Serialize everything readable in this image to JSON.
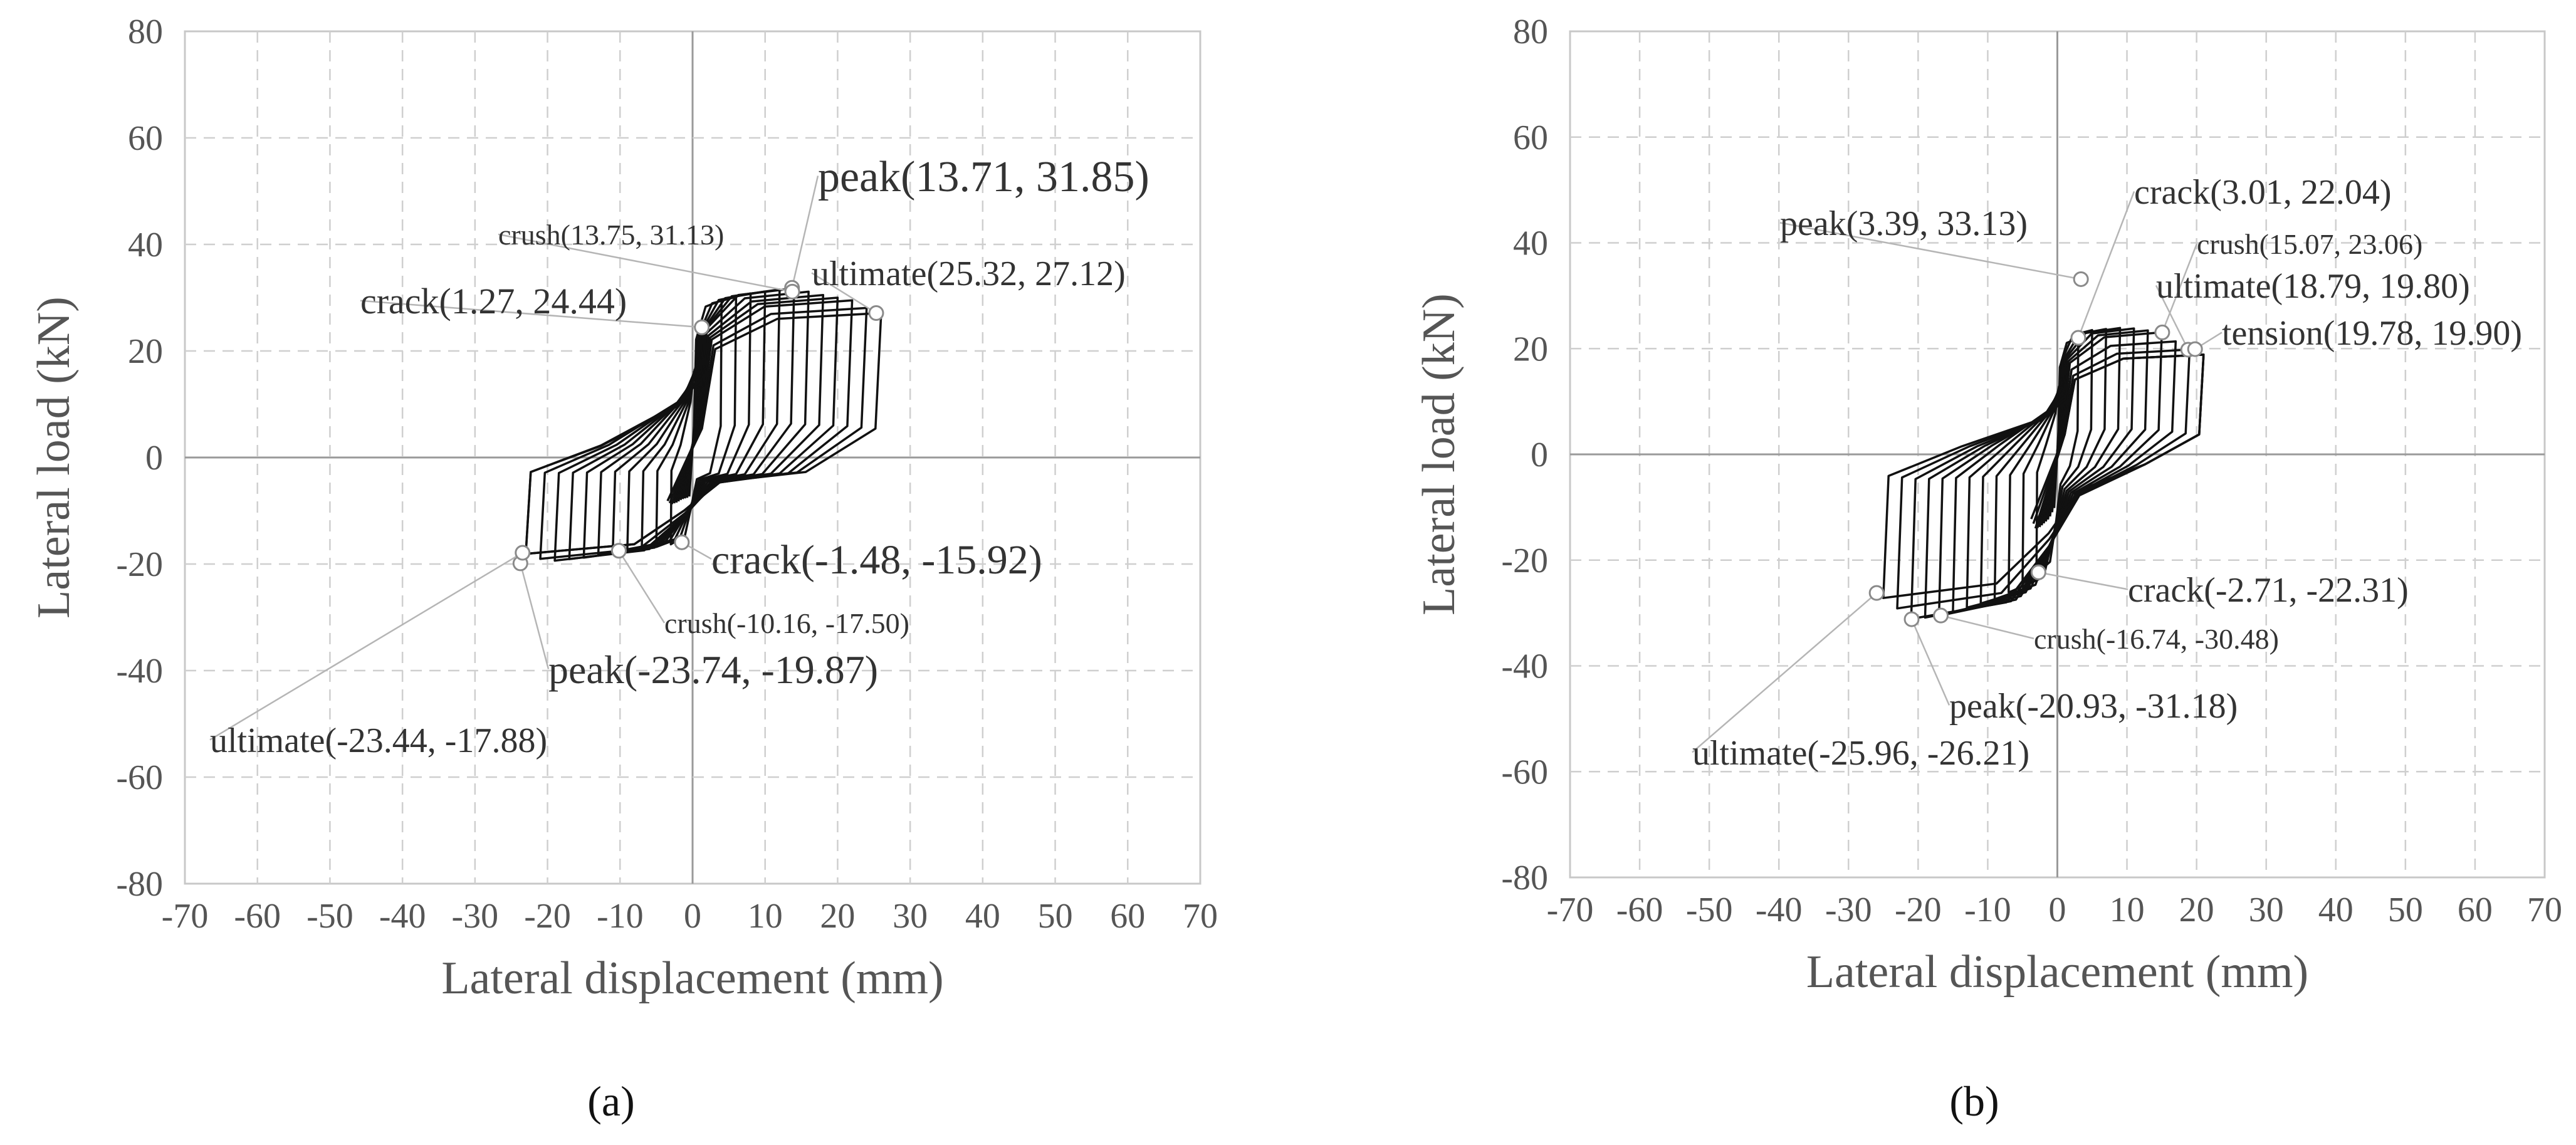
{
  "chart_data": [
    {
      "type": "line",
      "panel_label": "(a)",
      "xlabel": "Lateral displacement (mm)",
      "ylabel": "Lateral load (kN)",
      "xlim": [
        -70,
        70
      ],
      "ylim": [
        -80,
        80
      ],
      "xticks": [
        -70,
        -60,
        -50,
        -40,
        -30,
        -20,
        -10,
        0,
        10,
        20,
        30,
        40,
        50,
        60,
        70
      ],
      "yticks": [
        80,
        60,
        40,
        20,
        0,
        -20,
        -40,
        -60,
        -80
      ],
      "grid": true,
      "hysteresis_envelope_pos": [
        [
          0,
          0
        ],
        [
          1.27,
          24.44
        ],
        [
          2,
          27
        ],
        [
          4,
          29.5
        ],
        [
          8,
          30.8
        ],
        [
          13.71,
          31.85
        ],
        [
          18,
          30.5
        ],
        [
          22,
          29.5
        ],
        [
          25.32,
          27.12
        ]
      ],
      "hysteresis_envelope_neg": [
        [
          0,
          0
        ],
        [
          -1.48,
          -15.92
        ],
        [
          -5,
          -16.8
        ],
        [
          -10.16,
          -17.5
        ],
        [
          -15,
          -18.8
        ],
        [
          -20,
          -19.5
        ],
        [
          -23.74,
          -19.87
        ],
        [
          -23.44,
          -17.88
        ]
      ],
      "unload_pos_x": [
        4,
        6,
        8,
        10,
        12,
        14,
        16,
        18,
        20,
        22,
        24,
        26
      ],
      "unload_neg_x": [
        -3,
        -5,
        -7,
        -9,
        -11,
        -13,
        -15,
        -17,
        -19,
        -21,
        -23
      ],
      "annotations": [
        {
          "label": "peak(13.71, 31.85)",
          "x": 13.71,
          "y": 31.85
        },
        {
          "label": "crush(13.75, 31.13)",
          "x": 13.75,
          "y": 31.13
        },
        {
          "label": "ultimate(25.32, 27.12)",
          "x": 25.32,
          "y": 27.12
        },
        {
          "label": "crack(1.27, 24.44)",
          "x": 1.27,
          "y": 24.44
        },
        {
          "label": "crack(-1.48, -15.92)",
          "x": -1.48,
          "y": -15.92
        },
        {
          "label": "crush(-10.16, -17.50)",
          "x": -10.16,
          "y": -17.5
        },
        {
          "label": "peak(-23.74, -19.87)",
          "x": -23.74,
          "y": -19.87
        },
        {
          "label": "ultimate(-23.44, -17.88)",
          "x": -23.44,
          "y": -17.88
        }
      ]
    },
    {
      "type": "line",
      "panel_label": "(b)",
      "xlabel": "Lateral displacement (mm)",
      "ylabel": "Lateral load (kN)",
      "xlim": [
        -70,
        70
      ],
      "ylim": [
        -80,
        80
      ],
      "xticks": [
        -70,
        -60,
        -50,
        -40,
        -30,
        -20,
        -10,
        0,
        10,
        20,
        30,
        40,
        50,
        60,
        70
      ],
      "yticks": [
        80,
        60,
        40,
        20,
        0,
        -20,
        -40,
        -60,
        -80
      ],
      "grid": true,
      "hysteresis_envelope_pos": [
        [
          0,
          0
        ],
        [
          3.01,
          22.04
        ],
        [
          3.39,
          33.13
        ],
        [
          5,
          23.5
        ],
        [
          10,
          24
        ],
        [
          15.07,
          23.06
        ],
        [
          18.79,
          19.8
        ],
        [
          19.78,
          19.9
        ],
        [
          22,
          18
        ]
      ],
      "hysteresis_envelope_neg": [
        [
          0,
          0
        ],
        [
          -2.71,
          -22.31
        ],
        [
          -8,
          -27
        ],
        [
          -16.74,
          -30.48
        ],
        [
          -20.93,
          -31.18
        ],
        [
          -25.96,
          -26.21
        ]
      ],
      "unload_pos_x": [
        3,
        5,
        7,
        9,
        11,
        13,
        15,
        17,
        19,
        21
      ],
      "unload_neg_x": [
        -3,
        -5,
        -7,
        -9,
        -11,
        -13,
        -15,
        -17,
        -19,
        -21,
        -23,
        -25
      ],
      "annotations": [
        {
          "label": "crack(3.01, 22.04)",
          "x": 3.01,
          "y": 22.04
        },
        {
          "label": "peak(3.39, 33.13)",
          "x": 3.39,
          "y": 33.13
        },
        {
          "label": "crush(15.07, 23.06)",
          "x": 15.07,
          "y": 23.06
        },
        {
          "label": "ultimate(18.79, 19.80)",
          "x": 18.79,
          "y": 19.8
        },
        {
          "label": "tension(19.78, 19.90)",
          "x": 19.78,
          "y": 19.9
        },
        {
          "label": "crack(-2.71, -22.31)",
          "x": -2.71,
          "y": -22.31
        },
        {
          "label": "crush(-16.74, -30.48)",
          "x": -16.74,
          "y": -30.48
        },
        {
          "label": "peak(-20.93, -31.18)",
          "x": -20.93,
          "y": -31.18
        },
        {
          "label": "ultimate(-25.96, -26.21)",
          "x": -25.96,
          "y": -26.21
        }
      ]
    }
  ]
}
